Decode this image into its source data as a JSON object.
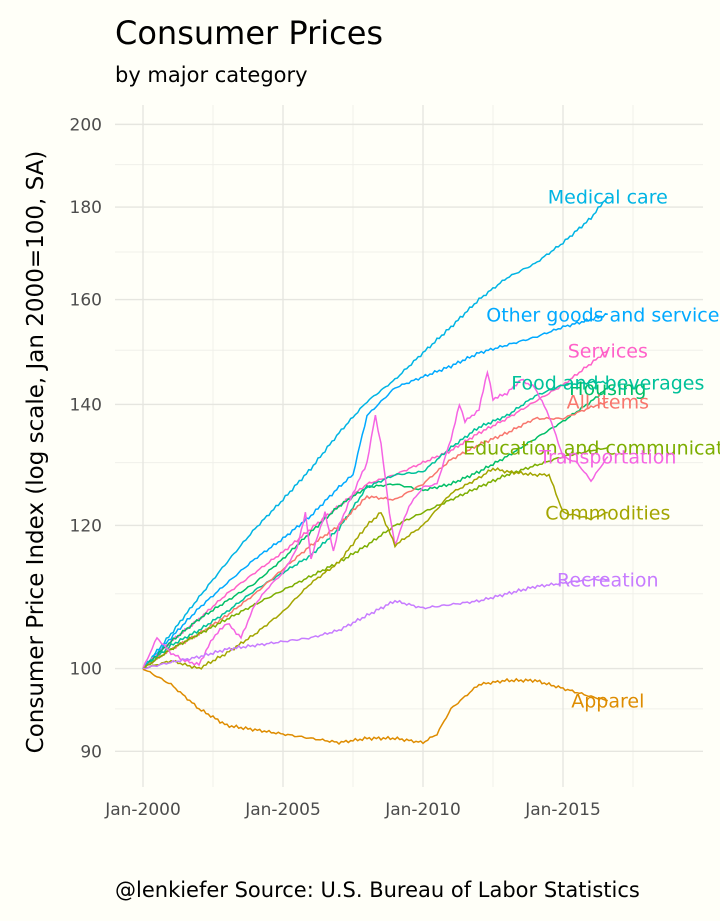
{
  "header": {
    "title": "Consumer Prices",
    "subtitle": "by major category"
  },
  "caption": "@lenkiefer Source: U.S. Bureau of Labor Statistics",
  "chart_data": {
    "type": "line",
    "title": "Consumer Prices",
    "subtitle": "by major category",
    "xlabel": "",
    "ylabel": "Consumer Price Index (log scale, Jan 2000=100, SA)",
    "y_scale": "log",
    "ylim": [
      86,
      205
    ],
    "xlim": [
      1999.0,
      2020.0
    ],
    "y_ticks": [
      90,
      100,
      120,
      140,
      160,
      180,
      200
    ],
    "x_ticks": [
      {
        "value": 2000,
        "label": "Jan-2000"
      },
      {
        "value": 2005,
        "label": "Jan-2005"
      },
      {
        "value": 2010,
        "label": "Jan-2010"
      },
      {
        "value": 2015,
        "label": "Jan-2015"
      }
    ],
    "grid": true,
    "legend": "none (direct labels at series end)",
    "series": [
      {
        "name": "Medical care",
        "color": "#00b4e4",
        "x": [
          2000,
          2001,
          2002,
          2003,
          2004,
          2005,
          2006,
          2007,
          2008,
          2009,
          2010,
          2011,
          2012,
          2013,
          2014,
          2015,
          2016,
          2016.6
        ],
        "y": [
          100,
          104.5,
          109.5,
          114.5,
          119.5,
          124,
          129,
          135,
          140.5,
          144.5,
          149.5,
          154.5,
          160,
          164.5,
          167.5,
          172,
          177.5,
          182.5
        ]
      },
      {
        "name": "Other goods and services",
        "color": "#00a9ff",
        "x": [
          2000,
          2001,
          2002,
          2003,
          2004,
          2005,
          2006,
          2007,
          2007.5,
          2008,
          2009,
          2010,
          2011,
          2012,
          2013,
          2014,
          2015,
          2016,
          2016.6
        ],
        "y": [
          100,
          104,
          108,
          111.5,
          115,
          118,
          121.5,
          126,
          128,
          138,
          143,
          145,
          147,
          149.5,
          151,
          152.5,
          154.5,
          156,
          157
        ]
      },
      {
        "name": "Services",
        "color": "#ff61c9",
        "x": [
          2000,
          2001,
          2002,
          2003,
          2004,
          2005,
          2006,
          2007,
          2008,
          2009,
          2010,
          2011,
          2012,
          2013,
          2014,
          2015,
          2016,
          2016.6
        ],
        "y": [
          100,
          103.5,
          106.5,
          110,
          113,
          116,
          119.5,
          123,
          126.5,
          128,
          130,
          132,
          135,
          137.5,
          140.5,
          143.5,
          147.5,
          150
        ]
      },
      {
        "name": "Housing",
        "color": "#00be67",
        "x": [
          2000,
          2001,
          2002,
          2003,
          2004,
          2005,
          2006,
          2007,
          2008,
          2009,
          2010,
          2011,
          2012,
          2013,
          2014,
          2015,
          2016,
          2016.6
        ],
        "y": [
          100,
          103.5,
          106.5,
          109,
          111.5,
          115,
          119,
          123,
          126,
          126.5,
          125.5,
          126.5,
          128.5,
          131,
          134,
          137,
          140.5,
          143
        ]
      },
      {
        "name": "Food and beverages",
        "color": "#00c19a",
        "x": [
          2000,
          2001,
          2002,
          2003,
          2004,
          2005,
          2006,
          2007,
          2008,
          2009,
          2010,
          2011,
          2012,
          2013,
          2014,
          2015,
          2016,
          2016.6
        ],
        "y": [
          100,
          103,
          105,
          107.5,
          110.5,
          113,
          115.5,
          119.5,
          126,
          128,
          128.5,
          132.5,
          136,
          138,
          141.5,
          143.5,
          144,
          144
        ]
      },
      {
        "name": "All items",
        "color": "#f8766d",
        "x": [
          2000,
          2001,
          2002,
          2003,
          2004,
          2005,
          2006,
          2007,
          2008,
          2009,
          2010,
          2011,
          2012,
          2013,
          2014,
          2015,
          2016,
          2016.6
        ],
        "y": [
          100,
          102.5,
          104.5,
          107,
          110,
          113.5,
          117,
          120,
          124.5,
          124,
          126.5,
          130.5,
          133,
          135,
          137.5,
          137.5,
          139.5,
          140.5
        ]
      },
      {
        "name": "Education and communication",
        "color": "#7cae00",
        "x": [
          2000,
          2001,
          2002,
          2003,
          2004,
          2005,
          2006,
          2007,
          2008,
          2009,
          2010,
          2011,
          2012,
          2013,
          2014,
          2015,
          2016,
          2016.6
        ],
        "y": [
          100,
          102.5,
          104.5,
          106.5,
          108.5,
          110.5,
          112.5,
          114.5,
          117,
          120,
          122,
          124,
          126,
          128,
          129.5,
          131,
          132,
          132.5
        ]
      },
      {
        "name": "Transportation",
        "color": "#f564e3",
        "x": [
          2000,
          2000.5,
          2001,
          2001.5,
          2002,
          2002.5,
          2003,
          2003.5,
          2004,
          2004.5,
          2005,
          2005.5,
          2005.8,
          2006,
          2006.5,
          2006.8,
          2007,
          2007.5,
          2008,
          2008.3,
          2008.5,
          2008.8,
          2009,
          2009.5,
          2010,
          2010.5,
          2011,
          2011.3,
          2011.5,
          2012,
          2012.3,
          2012.5,
          2013,
          2013.5,
          2014,
          2014.5,
          2015,
          2015.5,
          2016,
          2016.6
        ],
        "y": [
          100,
          104,
          102,
          101,
          100.5,
          104,
          106,
          104,
          108.5,
          111,
          113,
          116.5,
          122,
          115,
          122,
          116,
          120,
          125,
          130,
          138,
          133,
          122,
          117,
          123,
          126,
          126.5,
          134,
          140,
          137,
          139,
          146,
          141,
          142,
          144.5,
          143,
          138,
          131,
          130,
          127,
          131
        ]
      },
      {
        "name": "Commodities",
        "color": "#a3a500",
        "x": [
          2000,
          2001,
          2002,
          2003,
          2004,
          2005,
          2006,
          2007,
          2008,
          2008.5,
          2009,
          2010,
          2011,
          2012,
          2012.5,
          2013,
          2014,
          2014.5,
          2015,
          2016,
          2016.6
        ],
        "y": [
          100,
          101,
          100,
          102,
          104.5,
          107.5,
          111.5,
          114.5,
          120,
          122,
          117,
          120,
          125,
          127.5,
          129,
          128.5,
          128,
          128,
          122,
          121,
          122
        ]
      },
      {
        "name": "Recreation",
        "color": "#c77cff",
        "x": [
          2000,
          2001,
          2002,
          2003,
          2004,
          2005,
          2006,
          2007,
          2008,
          2009,
          2010,
          2011,
          2012,
          2013,
          2014,
          2015,
          2016,
          2016.6
        ],
        "y": [
          100,
          100.8,
          101.5,
          102.5,
          103,
          103.5,
          104,
          105,
          107,
          109,
          108,
          108.5,
          109,
          110,
          111,
          111.5,
          112,
          112
        ]
      },
      {
        "name": "Apparel",
        "color": "#de8c00",
        "x": [
          2000,
          2001,
          2002,
          2003,
          2004,
          2005,
          2006,
          2007,
          2008,
          2009,
          2010,
          2010.5,
          2011,
          2012,
          2013,
          2014,
          2015,
          2016,
          2016.6
        ],
        "y": [
          100,
          98,
          95,
          93,
          92.5,
          92,
          91.5,
          91,
          91.5,
          91.5,
          91,
          92,
          95,
          98,
          98.5,
          98.5,
          97.5,
          96.5,
          96
        ]
      }
    ]
  }
}
